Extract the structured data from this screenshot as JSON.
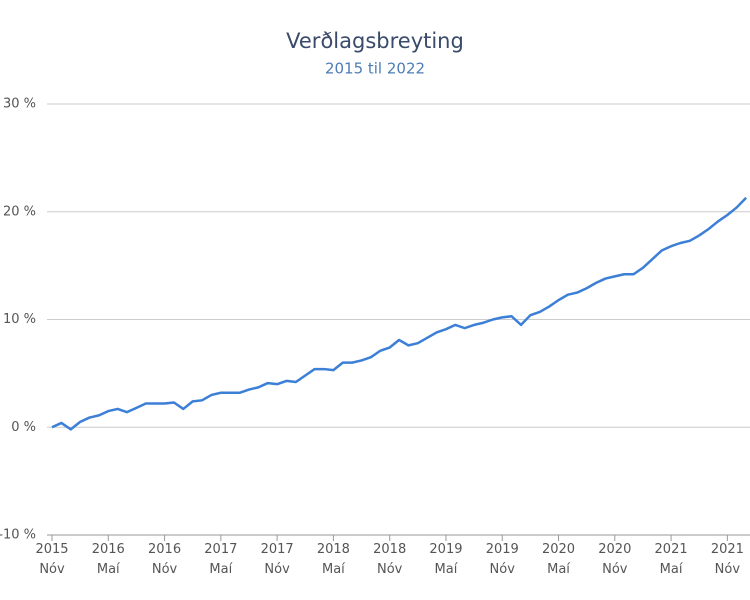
{
  "chart_data": {
    "type": "line",
    "title": "Verðlagsbreyting",
    "subtitle": "2015 til 2022",
    "categories": [
      "2015 Nóv",
      null,
      null,
      null,
      null,
      null,
      "2016 Maí",
      null,
      null,
      null,
      null,
      null,
      "2016 Nóv",
      null,
      null,
      null,
      null,
      null,
      "2017 Maí",
      null,
      null,
      null,
      null,
      null,
      "2017 Nóv",
      null,
      null,
      null,
      null,
      null,
      "2018 Maí",
      null,
      null,
      null,
      null,
      null,
      "2018 Nóv",
      null,
      null,
      null,
      null,
      null,
      "2019 Maí",
      null,
      null,
      null,
      null,
      null,
      "2019 Nóv",
      null,
      null,
      null,
      null,
      null,
      "2020 Maí",
      null,
      null,
      null,
      null,
      null,
      "2020 Nóv",
      null,
      null,
      null,
      null,
      null,
      "2021 Maí",
      null,
      null,
      null,
      null,
      null,
      "2021 Nóv",
      null,
      null
    ],
    "series": [
      {
        "color": "#3c7fd6",
        "values": [
          0,
          0.4,
          -0.2,
          0.5,
          0.9,
          1.1,
          1.5,
          1.7,
          1.4,
          1.8,
          2.2,
          2.2,
          2.2,
          2.3,
          1.7,
          2.4,
          2.5,
          3.0,
          3.2,
          3.2,
          3.2,
          3.5,
          3.7,
          4.1,
          4.0,
          4.3,
          4.2,
          4.8,
          5.4,
          5.4,
          5.3,
          6.0,
          6.0,
          6.2,
          6.5,
          7.1,
          7.4,
          8.1,
          7.6,
          7.8,
          8.3,
          8.8,
          9.1,
          9.5,
          9.2,
          9.5,
          9.7,
          10.0,
          10.2,
          10.3,
          9.5,
          10.4,
          10.7,
          11.2,
          11.8,
          12.3,
          12.5,
          12.9,
          13.4,
          13.8,
          14.0,
          14.2,
          14.2,
          14.8,
          15.6,
          16.4,
          16.8,
          17.1,
          17.3,
          17.8,
          18.4,
          19.1,
          19.7,
          20.4,
          21.3
        ]
      }
    ],
    "ylim": [
      -10,
      30
    ],
    "yticks": [
      {
        "value": -10,
        "label": "-10 %"
      },
      {
        "value": 0,
        "label": "0 %"
      },
      {
        "value": 10,
        "label": "10 %"
      },
      {
        "value": 20,
        "label": "20 %"
      },
      {
        "value": 30,
        "label": "30 %"
      }
    ],
    "grid": true
  }
}
